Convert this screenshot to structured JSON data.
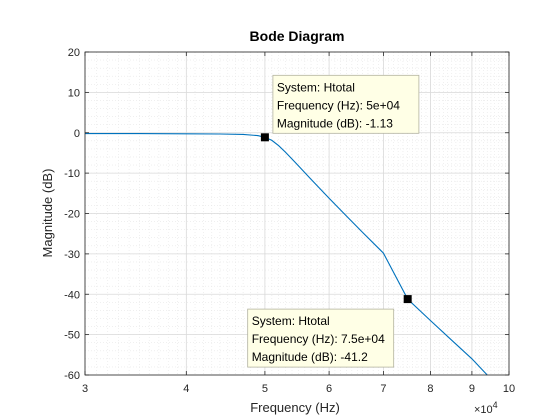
{
  "chart_data": {
    "type": "line",
    "title": "Bode Diagram",
    "xlabel": "Frequency  (Hz)",
    "ylabel": "Magnitude (dB)",
    "x_scale": "log",
    "xlim": [
      30000,
      100000
    ],
    "ylim": [
      -60,
      20
    ],
    "x_tick_labels": [
      "3",
      "4",
      "5",
      "6",
      "7",
      "8",
      "9",
      "10"
    ],
    "x_tick_values": [
      30000,
      40000,
      50000,
      60000,
      70000,
      80000,
      90000,
      100000
    ],
    "x_exponent_label": "×10",
    "x_exponent_power": "4",
    "y_tick_values": [
      20,
      10,
      0,
      -10,
      -20,
      -30,
      -40,
      -50,
      -60
    ],
    "y_tick_labels": [
      "20",
      "10",
      "0",
      "-10",
      "-20",
      "-30",
      "-40",
      "-50",
      "-60"
    ],
    "grid": true,
    "minor_grid": true,
    "line_color": "#0072BD",
    "series": [
      {
        "x": [
          30000,
          35000,
          40000,
          44000,
          47000,
          49000,
          50000,
          51000,
          52000,
          53000,
          54000,
          55000,
          57000,
          60000,
          63000,
          66000,
          70000,
          75000,
          80000,
          85000,
          90000,
          94000
        ],
        "y": [
          -0.2,
          -0.2,
          -0.25,
          -0.3,
          -0.4,
          -0.7,
          -1.13,
          -1.9,
          -3.2,
          -4.8,
          -6.5,
          -8.2,
          -11.5,
          -16.2,
          -20.6,
          -24.7,
          -29.8,
          -41.2,
          -46.5,
          -51.4,
          -56.0,
          -60.0
        ]
      }
    ],
    "datatips": [
      {
        "x": 50000,
        "y": -1.13,
        "line1": "System: Htotal",
        "line2": "Frequency (Hz): 5e+04",
        "line3": "Magnitude (dB): -1.13"
      },
      {
        "x": 75000,
        "y": -41.2,
        "line1": "System: Htotal",
        "line2": "Frequency (Hz): 7.5e+04",
        "line3": "Magnitude (dB): -41.2"
      }
    ]
  }
}
